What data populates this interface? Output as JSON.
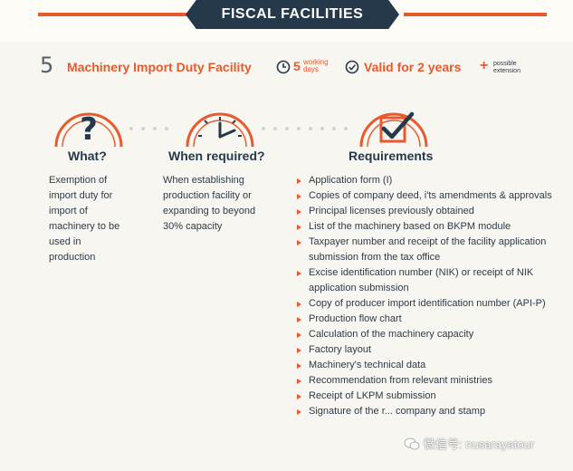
{
  "banner": {
    "title": "FISCAL FACILITIES"
  },
  "header": {
    "number": "5",
    "title": "Machinery Import Duty Facility",
    "days_number": "5",
    "days_line1": "working",
    "days_line2": "days",
    "valid": "Valid for 2 years",
    "plus": "+",
    "extension_line1": "possible",
    "extension_line2": "extension",
    "icons": [
      "clock-icon",
      "check-circle-icon"
    ]
  },
  "columns": {
    "what": {
      "icon": "question-mark-icon",
      "heading": "What?",
      "lines": [
        "Exemption of",
        "import duty for",
        "import of",
        "machinery to be",
        "used in",
        "production"
      ]
    },
    "when": {
      "icon": "clock-icon",
      "heading": "When required?",
      "lines": [
        "When establishing",
        "production facility or",
        "expanding to beyond",
        "30% capacity"
      ]
    },
    "requirements": {
      "icon": "checkbox-icon",
      "heading": "Requirements",
      "items": [
        "Application form (I)",
        "Copies of company deed, i'ts amendments & approvals",
        "Principal licenses previously obtained",
        "List of the machinery based on BKPM module",
        "Taxpayer number and receipt of the facility application submission from the tax office",
        "Excise identification number (NIK) or receipt of NIK application submission",
        "Copy of producer import identification number (API-P)",
        "Production flow chart",
        "Calculation of the machinery capacity",
        "Factory layout",
        "Machinery's technical data",
        "Recommendation from relevant ministries",
        "Receipt of LKPM submission",
        "Signature of the r... company and stamp"
      ]
    }
  },
  "watermark": {
    "text": "微信号: nusarayatour",
    "icon": "wechat-icon"
  },
  "colors": {
    "accent": "#e85a2e",
    "navy": "#25394a",
    "text": "#2e3a48",
    "background": "#f7f6f1"
  }
}
